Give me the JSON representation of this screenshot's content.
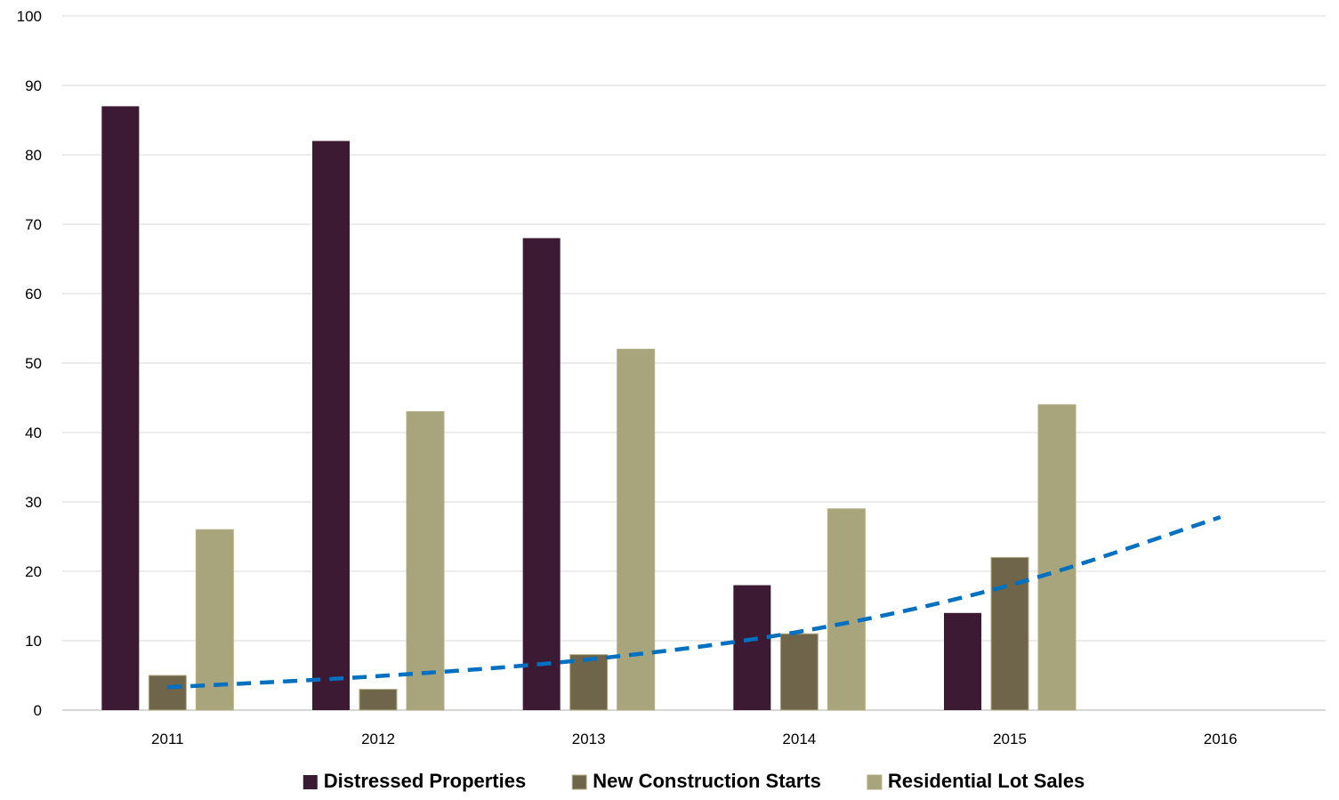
{
  "chart_data": {
    "type": "bar",
    "title": "",
    "xlabel": "",
    "ylabel": "",
    "ylim": [
      0,
      100
    ],
    "yticks": [
      0,
      10,
      20,
      30,
      40,
      50,
      60,
      70,
      80,
      90,
      100
    ],
    "categories": [
      "2011",
      "2012",
      "2013",
      "2014",
      "2015",
      "2016"
    ],
    "series": [
      {
        "name": "Distressed Properties",
        "color": "#3c1a33",
        "values": [
          87,
          82,
          68,
          18,
          14,
          null
        ]
      },
      {
        "name": "New Construction Starts",
        "color": "#6f654b",
        "values": [
          5,
          3,
          8,
          11,
          22,
          null
        ]
      },
      {
        "name": "Residential Lot Sales",
        "color": "#a8a47c",
        "values": [
          26,
          43,
          52,
          29,
          44,
          null
        ]
      }
    ],
    "trendline": {
      "of_series": "New Construction Starts",
      "style": "dashed",
      "color": "#0070c0",
      "x": [
        "2011",
        "2012",
        "2013",
        "2014",
        "2015",
        "2016"
      ],
      "values": [
        3.3,
        4.9,
        7.3,
        11.3,
        18.0,
        27.8
      ]
    },
    "grid": true,
    "legend_position": "bottom"
  }
}
